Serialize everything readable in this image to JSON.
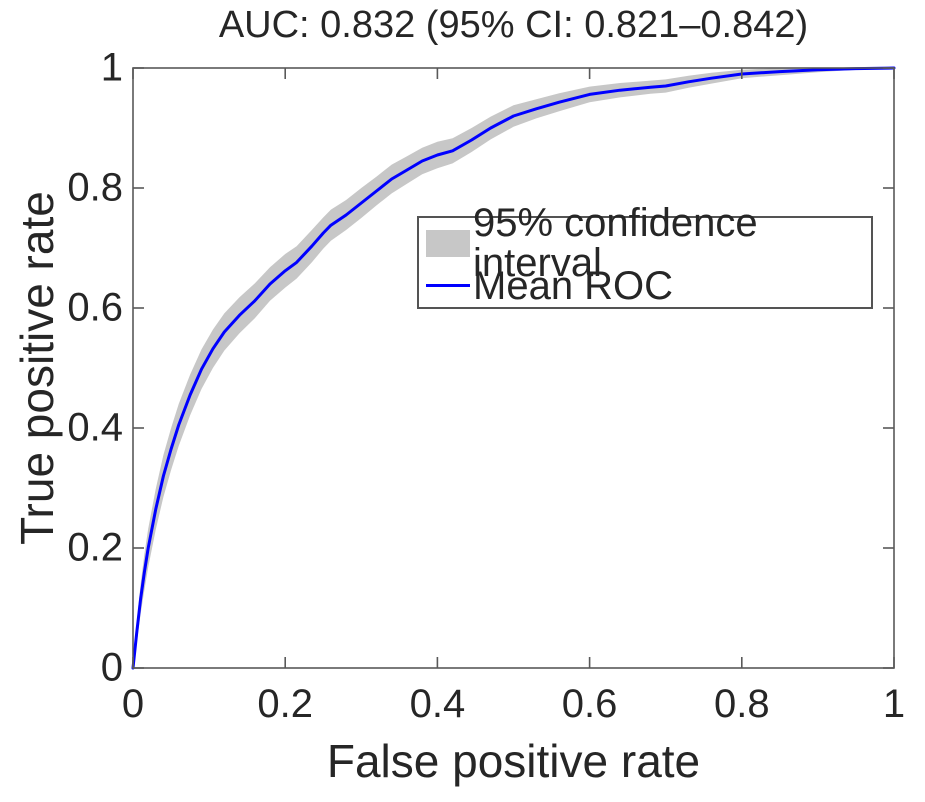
{
  "title": "AUC: 0.832 (95% CI: 0.821–0.842)",
  "axes": {
    "xlabel": "False positive rate",
    "ylabel": "True positive rate",
    "x_ticks": [
      {
        "label": "0",
        "value": 0
      },
      {
        "label": "0.2",
        "value": 0.2
      },
      {
        "label": "0.4",
        "value": 0.4
      },
      {
        "label": "0.6",
        "value": 0.6
      },
      {
        "label": "0.8",
        "value": 0.8
      },
      {
        "label": "1",
        "value": 1
      }
    ],
    "y_ticks": [
      {
        "label": "0",
        "value": 0
      },
      {
        "label": "0.2",
        "value": 0.2
      },
      {
        "label": "0.4",
        "value": 0.4
      },
      {
        "label": "0.6",
        "value": 0.6
      },
      {
        "label": "0.8",
        "value": 0.8
      },
      {
        "label": "1",
        "value": 1
      }
    ]
  },
  "legend": {
    "items": [
      {
        "label": "95% confidence interval",
        "type": "patch",
        "color": "#c7c7c7"
      },
      {
        "label": "Mean ROC",
        "type": "line",
        "color": "#0000ff"
      }
    ]
  },
  "colors": {
    "mean_line": "#0000ff",
    "band": "#c7c7c7",
    "axis": "#595959",
    "text": "#262626",
    "legend_border": "#545454",
    "background": "#ffffff"
  },
  "chart_data": {
    "type": "line",
    "title": "AUC: 0.832 (95% CI: 0.821–0.842)",
    "xlabel": "False positive rate",
    "ylabel": "True positive rate",
    "xlim": [
      0,
      1
    ],
    "ylim": [
      0,
      1
    ],
    "grid": false,
    "legend_position": "inside upper-center-right",
    "auc": 0.832,
    "auc_ci_95": [
      0.821,
      0.842
    ],
    "series": [
      {
        "name": "Mean ROC",
        "type": "line",
        "color": "#0000ff",
        "points": [
          [
            0.0,
            0.0
          ],
          [
            0.005,
            0.06
          ],
          [
            0.01,
            0.115
          ],
          [
            0.015,
            0.16
          ],
          [
            0.02,
            0.2
          ],
          [
            0.03,
            0.265
          ],
          [
            0.04,
            0.32
          ],
          [
            0.05,
            0.365
          ],
          [
            0.06,
            0.405
          ],
          [
            0.075,
            0.455
          ],
          [
            0.09,
            0.498
          ],
          [
            0.105,
            0.532
          ],
          [
            0.12,
            0.56
          ],
          [
            0.14,
            0.588
          ],
          [
            0.16,
            0.612
          ],
          [
            0.18,
            0.64
          ],
          [
            0.2,
            0.662
          ],
          [
            0.215,
            0.676
          ],
          [
            0.235,
            0.703
          ],
          [
            0.25,
            0.725
          ],
          [
            0.26,
            0.738
          ],
          [
            0.28,
            0.755
          ],
          [
            0.3,
            0.775
          ],
          [
            0.32,
            0.795
          ],
          [
            0.34,
            0.815
          ],
          [
            0.36,
            0.83
          ],
          [
            0.38,
            0.845
          ],
          [
            0.4,
            0.855
          ],
          [
            0.42,
            0.862
          ],
          [
            0.445,
            0.88
          ],
          [
            0.47,
            0.9
          ],
          [
            0.5,
            0.92
          ],
          [
            0.53,
            0.932
          ],
          [
            0.56,
            0.943
          ],
          [
            0.6,
            0.956
          ],
          [
            0.64,
            0.963
          ],
          [
            0.68,
            0.968
          ],
          [
            0.7,
            0.97
          ],
          [
            0.73,
            0.977
          ],
          [
            0.76,
            0.983
          ],
          [
            0.8,
            0.99
          ],
          [
            0.85,
            0.994
          ],
          [
            0.9,
            0.997
          ],
          [
            0.95,
            0.999
          ],
          [
            1.0,
            1.0
          ]
        ]
      },
      {
        "name": "95% confidence interval",
        "type": "band",
        "color": "#c7c7c7",
        "upper": [
          [
            0.0,
            0.0
          ],
          [
            0.005,
            0.078
          ],
          [
            0.01,
            0.14
          ],
          [
            0.015,
            0.19
          ],
          [
            0.02,
            0.232
          ],
          [
            0.03,
            0.299
          ],
          [
            0.04,
            0.355
          ],
          [
            0.05,
            0.4
          ],
          [
            0.06,
            0.44
          ],
          [
            0.075,
            0.489
          ],
          [
            0.09,
            0.531
          ],
          [
            0.105,
            0.564
          ],
          [
            0.12,
            0.591
          ],
          [
            0.14,
            0.618
          ],
          [
            0.16,
            0.641
          ],
          [
            0.18,
            0.668
          ],
          [
            0.2,
            0.69
          ],
          [
            0.215,
            0.703
          ],
          [
            0.235,
            0.73
          ],
          [
            0.25,
            0.751
          ],
          [
            0.26,
            0.764
          ],
          [
            0.28,
            0.78
          ],
          [
            0.3,
            0.8
          ],
          [
            0.32,
            0.819
          ],
          [
            0.34,
            0.839
          ],
          [
            0.36,
            0.853
          ],
          [
            0.38,
            0.867
          ],
          [
            0.4,
            0.877
          ],
          [
            0.42,
            0.883
          ],
          [
            0.445,
            0.9
          ],
          [
            0.47,
            0.919
          ],
          [
            0.5,
            0.938
          ],
          [
            0.53,
            0.948
          ],
          [
            0.56,
            0.958
          ],
          [
            0.6,
            0.969
          ],
          [
            0.64,
            0.975
          ],
          [
            0.68,
            0.979
          ],
          [
            0.7,
            0.981
          ],
          [
            0.73,
            0.987
          ],
          [
            0.76,
            0.992
          ],
          [
            0.8,
            0.997
          ],
          [
            0.85,
            1.0
          ],
          [
            0.9,
            1.0
          ],
          [
            0.95,
            1.0
          ],
          [
            1.0,
            1.0
          ]
        ],
        "lower": [
          [
            0.0,
            0.0
          ],
          [
            0.005,
            0.042
          ],
          [
            0.01,
            0.09
          ],
          [
            0.015,
            0.13
          ],
          [
            0.02,
            0.168
          ],
          [
            0.03,
            0.231
          ],
          [
            0.04,
            0.285
          ],
          [
            0.05,
            0.33
          ],
          [
            0.06,
            0.37
          ],
          [
            0.075,
            0.421
          ],
          [
            0.09,
            0.465
          ],
          [
            0.105,
            0.5
          ],
          [
            0.12,
            0.529
          ],
          [
            0.14,
            0.558
          ],
          [
            0.16,
            0.583
          ],
          [
            0.18,
            0.612
          ],
          [
            0.2,
            0.634
          ],
          [
            0.215,
            0.649
          ],
          [
            0.235,
            0.676
          ],
          [
            0.25,
            0.699
          ],
          [
            0.26,
            0.712
          ],
          [
            0.28,
            0.73
          ],
          [
            0.3,
            0.75
          ],
          [
            0.32,
            0.771
          ],
          [
            0.34,
            0.791
          ],
          [
            0.36,
            0.807
          ],
          [
            0.38,
            0.823
          ],
          [
            0.4,
            0.833
          ],
          [
            0.42,
            0.841
          ],
          [
            0.445,
            0.86
          ],
          [
            0.47,
            0.881
          ],
          [
            0.5,
            0.902
          ],
          [
            0.53,
            0.916
          ],
          [
            0.56,
            0.928
          ],
          [
            0.6,
            0.943
          ],
          [
            0.64,
            0.951
          ],
          [
            0.68,
            0.957
          ],
          [
            0.7,
            0.959
          ],
          [
            0.73,
            0.967
          ],
          [
            0.76,
            0.974
          ],
          [
            0.8,
            0.983
          ],
          [
            0.85,
            0.988
          ],
          [
            0.9,
            0.993
          ],
          [
            0.95,
            0.997
          ],
          [
            1.0,
            1.0
          ]
        ]
      }
    ]
  }
}
